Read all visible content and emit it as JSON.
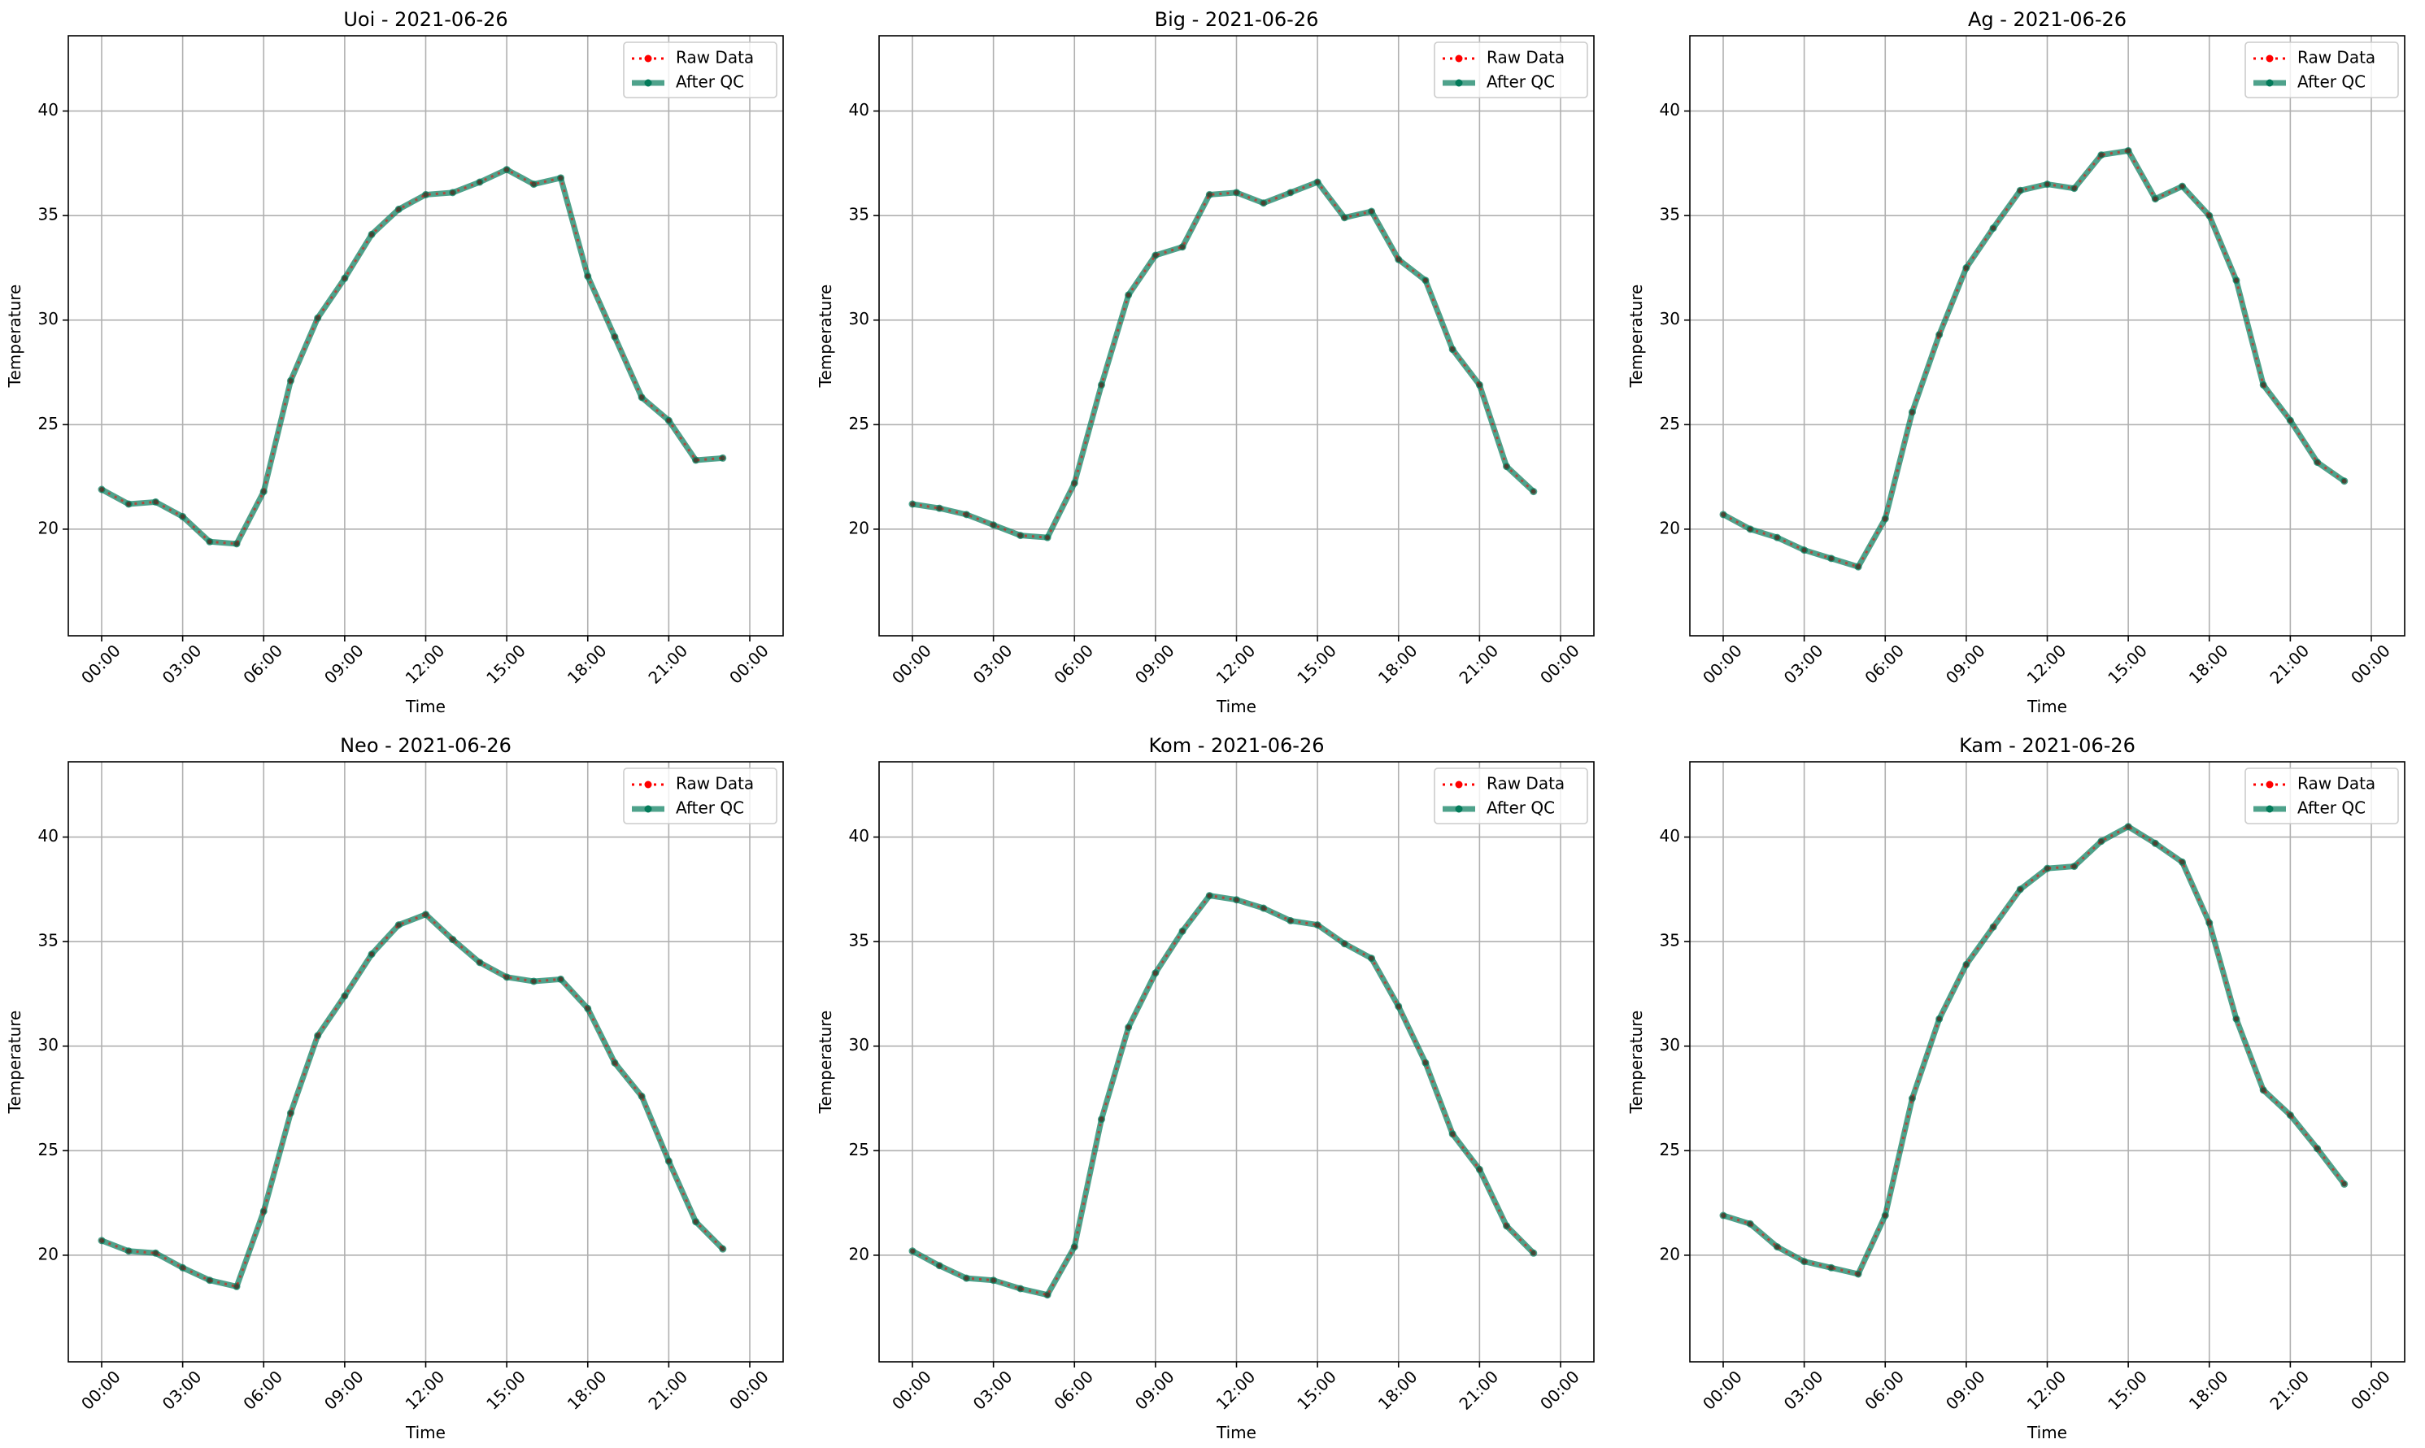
{
  "chart_data": [
    {
      "type": "line",
      "title": "Uoi - 2021-06-26",
      "xlabel": "Time",
      "ylabel": "Temperature",
      "x": [
        "00:00",
        "01:00",
        "02:00",
        "03:00",
        "04:00",
        "05:00",
        "06:00",
        "07:00",
        "08:00",
        "09:00",
        "10:00",
        "11:00",
        "12:00",
        "13:00",
        "14:00",
        "15:00",
        "16:00",
        "17:00",
        "18:00",
        "19:00",
        "20:00",
        "21:00",
        "22:00",
        "23:00"
      ],
      "xticks": [
        "00:00",
        "03:00",
        "06:00",
        "09:00",
        "12:00",
        "15:00",
        "18:00",
        "21:00",
        "00:00"
      ],
      "yticks": [
        20,
        25,
        30,
        35,
        40
      ],
      "ylim": [
        14.9,
        43.6
      ],
      "grid": true,
      "legend_position": "top-right",
      "series": [
        {
          "name": "Raw Data",
          "color": "#ff0000",
          "values": [
            21.9,
            21.2,
            21.3,
            20.6,
            19.4,
            19.3,
            21.8,
            27.1,
            30.1,
            32.0,
            34.1,
            35.3,
            36.0,
            36.1,
            36.6,
            37.2,
            36.5,
            36.8,
            32.1,
            29.2,
            26.3,
            25.2,
            23.3,
            23.4
          ]
        },
        {
          "name": "After QC",
          "color": "#037b5a",
          "values": [
            21.9,
            21.2,
            21.3,
            20.6,
            19.4,
            19.3,
            21.8,
            27.1,
            30.1,
            32.0,
            34.1,
            35.3,
            36.0,
            36.1,
            36.6,
            37.2,
            36.5,
            36.8,
            32.1,
            29.2,
            26.3,
            25.2,
            23.3,
            23.4
          ]
        }
      ]
    },
    {
      "type": "line",
      "title": "Big - 2021-06-26",
      "xlabel": "Time",
      "ylabel": "Temperature",
      "x": [
        "00:00",
        "01:00",
        "02:00",
        "03:00",
        "04:00",
        "05:00",
        "06:00",
        "07:00",
        "08:00",
        "09:00",
        "10:00",
        "11:00",
        "12:00",
        "13:00",
        "14:00",
        "15:00",
        "16:00",
        "17:00",
        "18:00",
        "19:00",
        "20:00",
        "21:00",
        "22:00",
        "23:00"
      ],
      "xticks": [
        "00:00",
        "03:00",
        "06:00",
        "09:00",
        "12:00",
        "15:00",
        "18:00",
        "21:00",
        "00:00"
      ],
      "yticks": [
        20,
        25,
        30,
        35,
        40
      ],
      "ylim": [
        14.9,
        43.6
      ],
      "grid": true,
      "legend_position": "top-right",
      "series": [
        {
          "name": "Raw Data",
          "color": "#ff0000",
          "values": [
            21.2,
            21.0,
            20.7,
            20.2,
            19.7,
            19.6,
            22.2,
            26.9,
            31.2,
            33.1,
            33.5,
            36.0,
            36.1,
            35.6,
            36.1,
            36.6,
            34.9,
            35.2,
            32.9,
            31.9,
            28.6,
            26.9,
            23.0,
            21.8
          ]
        },
        {
          "name": "After QC",
          "color": "#037b5a",
          "values": [
            21.2,
            21.0,
            20.7,
            20.2,
            19.7,
            19.6,
            22.2,
            26.9,
            31.2,
            33.1,
            33.5,
            36.0,
            36.1,
            35.6,
            36.1,
            36.6,
            34.9,
            35.2,
            32.9,
            31.9,
            28.6,
            26.9,
            23.0,
            21.8
          ]
        }
      ]
    },
    {
      "type": "line",
      "title": "Ag - 2021-06-26",
      "xlabel": "Time",
      "ylabel": "Temperature",
      "x": [
        "00:00",
        "01:00",
        "02:00",
        "03:00",
        "04:00",
        "05:00",
        "06:00",
        "07:00",
        "08:00",
        "09:00",
        "10:00",
        "11:00",
        "12:00",
        "13:00",
        "14:00",
        "15:00",
        "16:00",
        "17:00",
        "18:00",
        "19:00",
        "20:00",
        "21:00",
        "22:00",
        "23:00"
      ],
      "xticks": [
        "00:00",
        "03:00",
        "06:00",
        "09:00",
        "12:00",
        "15:00",
        "18:00",
        "21:00",
        "00:00"
      ],
      "yticks": [
        20,
        25,
        30,
        35,
        40
      ],
      "ylim": [
        14.9,
        43.6
      ],
      "grid": true,
      "legend_position": "top-right",
      "series": [
        {
          "name": "Raw Data",
          "color": "#ff0000",
          "values": [
            20.7,
            20.0,
            19.6,
            19.0,
            18.6,
            18.2,
            20.5,
            25.6,
            29.3,
            32.5,
            34.4,
            36.2,
            36.5,
            36.3,
            37.9,
            38.1,
            35.8,
            36.4,
            35.0,
            31.9,
            26.9,
            25.2,
            23.2,
            22.3
          ]
        },
        {
          "name": "After QC",
          "color": "#037b5a",
          "values": [
            20.7,
            20.0,
            19.6,
            19.0,
            18.6,
            18.2,
            20.5,
            25.6,
            29.3,
            32.5,
            34.4,
            36.2,
            36.5,
            36.3,
            37.9,
            38.1,
            35.8,
            36.4,
            35.0,
            31.9,
            26.9,
            25.2,
            23.2,
            22.3
          ]
        }
      ]
    },
    {
      "type": "line",
      "title": "Neo - 2021-06-26",
      "xlabel": "Time",
      "ylabel": "Temperature",
      "x": [
        "00:00",
        "01:00",
        "02:00",
        "03:00",
        "04:00",
        "05:00",
        "06:00",
        "07:00",
        "08:00",
        "09:00",
        "10:00",
        "11:00",
        "12:00",
        "13:00",
        "14:00",
        "15:00",
        "16:00",
        "17:00",
        "18:00",
        "19:00",
        "20:00",
        "21:00",
        "22:00",
        "23:00"
      ],
      "xticks": [
        "00:00",
        "03:00",
        "06:00",
        "09:00",
        "12:00",
        "15:00",
        "18:00",
        "21:00",
        "00:00"
      ],
      "yticks": [
        20,
        25,
        30,
        35,
        40
      ],
      "ylim": [
        14.9,
        43.6
      ],
      "grid": true,
      "legend_position": "top-right",
      "series": [
        {
          "name": "Raw Data",
          "color": "#ff0000",
          "values": [
            20.7,
            20.2,
            20.1,
            19.4,
            18.8,
            18.5,
            22.1,
            26.8,
            30.5,
            32.4,
            34.4,
            35.8,
            36.3,
            35.1,
            34.0,
            33.3,
            33.1,
            33.2,
            31.8,
            29.2,
            27.6,
            24.5,
            21.6,
            20.3
          ]
        },
        {
          "name": "After QC",
          "color": "#037b5a",
          "values": [
            20.7,
            20.2,
            20.1,
            19.4,
            18.8,
            18.5,
            22.1,
            26.8,
            30.5,
            32.4,
            34.4,
            35.8,
            36.3,
            35.1,
            34.0,
            33.3,
            33.1,
            33.2,
            31.8,
            29.2,
            27.6,
            24.5,
            21.6,
            20.3
          ]
        }
      ]
    },
    {
      "type": "line",
      "title": "Kom - 2021-06-26",
      "xlabel": "Time",
      "ylabel": "Temperature",
      "x": [
        "00:00",
        "01:00",
        "02:00",
        "03:00",
        "04:00",
        "05:00",
        "06:00",
        "07:00",
        "08:00",
        "09:00",
        "10:00",
        "11:00",
        "12:00",
        "13:00",
        "14:00",
        "15:00",
        "16:00",
        "17:00",
        "18:00",
        "19:00",
        "20:00",
        "21:00",
        "22:00",
        "23:00"
      ],
      "xticks": [
        "00:00",
        "03:00",
        "06:00",
        "09:00",
        "12:00",
        "15:00",
        "18:00",
        "21:00",
        "00:00"
      ],
      "yticks": [
        20,
        25,
        30,
        35,
        40
      ],
      "ylim": [
        14.9,
        43.6
      ],
      "grid": true,
      "legend_position": "top-right",
      "series": [
        {
          "name": "Raw Data",
          "color": "#ff0000",
          "values": [
            20.2,
            19.5,
            18.9,
            18.8,
            18.4,
            18.1,
            20.4,
            26.5,
            30.9,
            33.5,
            35.5,
            37.2,
            37.0,
            36.6,
            36.0,
            35.8,
            34.9,
            34.2,
            31.9,
            29.2,
            25.8,
            24.1,
            21.4,
            20.1
          ]
        },
        {
          "name": "After QC",
          "color": "#037b5a",
          "values": [
            20.2,
            19.5,
            18.9,
            18.8,
            18.4,
            18.1,
            20.4,
            26.5,
            30.9,
            33.5,
            35.5,
            37.2,
            37.0,
            36.6,
            36.0,
            35.8,
            34.9,
            34.2,
            31.9,
            29.2,
            25.8,
            24.1,
            21.4,
            20.1
          ]
        }
      ]
    },
    {
      "type": "line",
      "title": "Kam - 2021-06-26",
      "xlabel": "Time",
      "ylabel": "Temperature",
      "x": [
        "00:00",
        "01:00",
        "02:00",
        "03:00",
        "04:00",
        "05:00",
        "06:00",
        "07:00",
        "08:00",
        "09:00",
        "10:00",
        "11:00",
        "12:00",
        "13:00",
        "14:00",
        "15:00",
        "16:00",
        "17:00",
        "18:00",
        "19:00",
        "20:00",
        "21:00",
        "22:00",
        "23:00"
      ],
      "xticks": [
        "00:00",
        "03:00",
        "06:00",
        "09:00",
        "12:00",
        "15:00",
        "18:00",
        "21:00",
        "00:00"
      ],
      "yticks": [
        20,
        25,
        30,
        35,
        40
      ],
      "ylim": [
        14.9,
        43.6
      ],
      "grid": true,
      "legend_position": "top-right",
      "series": [
        {
          "name": "Raw Data",
          "color": "#ff0000",
          "values": [
            21.9,
            21.5,
            20.4,
            19.7,
            19.4,
            19.1,
            21.9,
            27.5,
            31.3,
            33.9,
            35.7,
            37.5,
            38.5,
            38.6,
            39.8,
            40.5,
            39.7,
            38.8,
            35.9,
            31.3,
            27.9,
            26.7,
            25.1,
            23.4
          ]
        },
        {
          "name": "After QC",
          "color": "#037b5a",
          "values": [
            21.9,
            21.5,
            20.4,
            19.7,
            19.4,
            19.1,
            21.9,
            27.5,
            31.3,
            33.9,
            35.7,
            37.5,
            38.5,
            38.6,
            39.8,
            40.5,
            39.7,
            38.8,
            35.9,
            31.3,
            27.9,
            26.7,
            25.1,
            23.4
          ]
        }
      ]
    }
  ]
}
